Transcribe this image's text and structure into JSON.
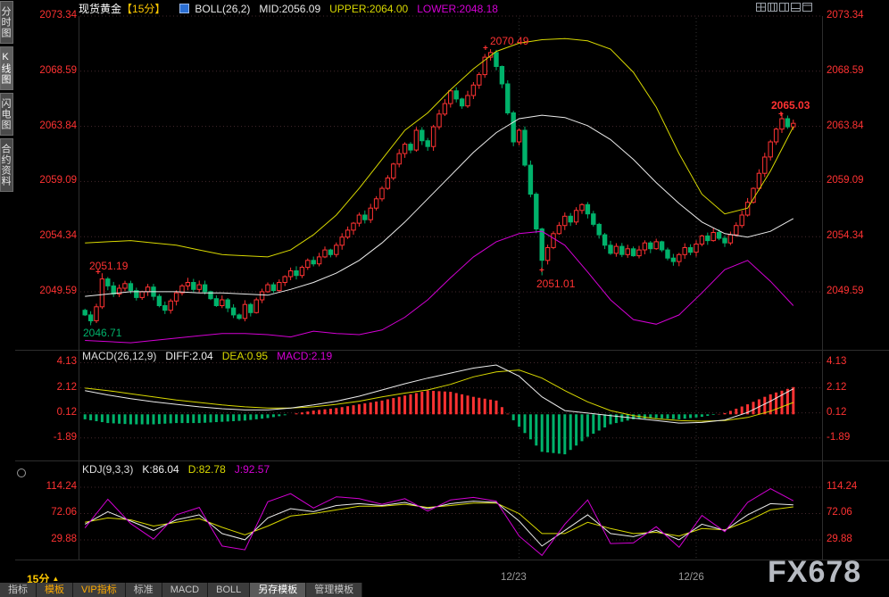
{
  "window": {
    "symbol": "现货黄金",
    "period": "【15分】"
  },
  "header": {
    "boll": "BOLL(26,2)",
    "mid": "MID:2056.09",
    "upper": "UPPER:2064.00",
    "lower": "LOWER:2048.18"
  },
  "sidebar": {
    "items": [
      "分时图",
      "K线图",
      "闪电图",
      "合约资料"
    ]
  },
  "main_chart": {
    "ticks": [
      "2073.34",
      "2068.59",
      "2063.84",
      "2059.09",
      "2054.34",
      "2049.59"
    ],
    "annotations": [
      {
        "text": "2051.19"
      },
      {
        "text": "2046.71"
      },
      {
        "text": "2070.49"
      },
      {
        "text": "2051.01"
      },
      {
        "text": "2065.03"
      }
    ]
  },
  "macd_panel": {
    "title": "MACD(26,12,9)",
    "diff": "DIFF:2.04",
    "dea": "DEA:0.95",
    "macd": "MACD:2.19",
    "ticks": [
      "4.13",
      "2.12",
      "0.12",
      "-1.89"
    ]
  },
  "kdj_panel": {
    "title": "KDJ(9,3,3)",
    "k": "K:86.04",
    "d": "D:82.78",
    "j": "J:92.57",
    "ticks": [
      "114.24",
      "72.06",
      "29.88"
    ]
  },
  "bottom_axis": {
    "period": "15分",
    "period_arrow": "▲",
    "dates": [
      "12/23",
      "12/26"
    ],
    "watermark": "FX678"
  },
  "toolbar": {
    "tabs": [
      "指标",
      "模板",
      "VIP指标",
      "标准",
      "MACD",
      "BOLL",
      "另存模板",
      "管理模板"
    ]
  },
  "chart_data": {
    "type": "candlestick",
    "title": "现货黄金 15分 K线 with BOLL(26,2), MACD(26,12,9), KDJ(9,3,3)",
    "colors": {
      "up": "#ff3232",
      "down": "#00b26b",
      "boll_upper": "#d8d800",
      "boll_mid": "#ececec",
      "boll_lower": "#d400d4",
      "diff": "#ececec",
      "dea": "#d8d800",
      "k": "#ececec",
      "d": "#d8d800",
      "j": "#d400d4",
      "hist_pos": "#ff3232",
      "hist_neg": "#00b26b",
      "grid": "#45292d",
      "dategrid": "#343434",
      "frame": "#2d2d2d"
    },
    "x_dates": [
      {
        "label": "12/23",
        "index": 76
      },
      {
        "label": "12/26",
        "index": 107
      }
    ],
    "main": {
      "ylim": [
        2044.75,
        2073.34
      ],
      "ticks": [
        2073.34,
        2068.59,
        2063.84,
        2059.09,
        2054.34,
        2049.59
      ],
      "first_open": 2048.0,
      "closes": [
        2047.6,
        2047.1,
        2048.3,
        2050.7,
        2050.1,
        2049.4,
        2049.9,
        2050.3,
        2049.7,
        2049.1,
        2049.6,
        2050.0,
        2049.2,
        2048.4,
        2048.0,
        2048.8,
        2049.5,
        2050.1,
        2050.4,
        2049.8,
        2050.2,
        2049.6,
        2049.0,
        2048.4,
        2048.9,
        2048.2,
        2047.6,
        2047.3,
        2048.5,
        2047.8,
        2048.9,
        2049.6,
        2050.2,
        2049.7,
        2050.4,
        2050.9,
        2051.4,
        2051.0,
        2051.7,
        2052.3,
        2052.0,
        2052.6,
        2053.2,
        2052.8,
        2053.6,
        2054.3,
        2054.9,
        2055.5,
        2056.2,
        2055.8,
        2056.8,
        2057.6,
        2058.5,
        2059.4,
        2060.6,
        2061.5,
        2062.3,
        2061.8,
        2063.5,
        2062.6,
        2062.1,
        2063.8,
        2064.9,
        2065.8,
        2066.9,
        2066.2,
        2065.6,
        2066.5,
        2067.4,
        2068.3,
        2069.8,
        2070.2,
        2069.0,
        2067.5,
        2065.0,
        2062.5,
        2063.5,
        2060.5,
        2058.0,
        2055.0,
        2052.3,
        2053.4,
        2054.6,
        2055.3,
        2056.1,
        2055.6,
        2056.6,
        2057.1,
        2056.3,
        2055.4,
        2054.5,
        2053.6,
        2052.9,
        2053.5,
        2052.8,
        2053.3,
        2052.7,
        2053.2,
        2053.8,
        2053.3,
        2053.9,
        2053.2,
        2052.5,
        2052.2,
        2052.8,
        2053.4,
        2053.0,
        2053.7,
        2054.4,
        2054.0,
        2054.7,
        2054.2,
        2053.8,
        2054.5,
        2055.3,
        2056.2,
        2057.3,
        2058.5,
        2059.8,
        2061.2,
        2062.5,
        2063.6,
        2064.5,
        2063.8,
        2064.1
      ],
      "wick_overrides": {
        "1": {
          "low": 2046.71
        },
        "3": {
          "high": 2051.19
        },
        "71": {
          "high": 2070.49
        },
        "80": {
          "low": 2051.01
        },
        "122": {
          "high": 2065.03
        }
      },
      "marks": [
        {
          "price": 2051.19,
          "index": 3,
          "type": "high"
        },
        {
          "price": 2046.71,
          "index": 1,
          "type": "low"
        },
        {
          "price": 2070.49,
          "index": 71,
          "type": "high"
        },
        {
          "price": 2051.01,
          "index": 80,
          "type": "low"
        },
        {
          "price": 2065.03,
          "index": 122,
          "type": "high"
        }
      ],
      "boll": {
        "sample_idx": [
          0,
          4,
          8,
          12,
          16,
          20,
          24,
          28,
          32,
          36,
          40,
          44,
          48,
          52,
          56,
          60,
          64,
          68,
          72,
          76,
          80,
          84,
          88,
          92,
          96,
          100,
          104,
          108,
          112,
          116,
          120,
          124
        ],
        "upper": [
          2053.8,
          2053.9,
          2054.0,
          2053.8,
          2053.6,
          2053.2,
          2052.8,
          2052.7,
          2052.6,
          2053.2,
          2054.5,
          2056.2,
          2058.5,
          2061.0,
          2063.5,
          2065.0,
          2067.0,
          2068.8,
          2070.3,
          2071.0,
          2071.3,
          2071.4,
          2071.2,
          2070.5,
          2068.5,
          2065.5,
          2061.5,
          2058.0,
          2056.3,
          2056.8,
          2060.0,
          2063.8
        ],
        "mid": [
          2049.2,
          2049.4,
          2049.6,
          2049.6,
          2049.6,
          2049.5,
          2049.5,
          2049.4,
          2049.3,
          2049.8,
          2050.4,
          2051.2,
          2052.3,
          2053.8,
          2055.6,
          2057.6,
          2059.6,
          2061.6,
          2063.3,
          2064.5,
          2064.8,
          2064.6,
          2063.9,
          2062.7,
          2061.0,
          2059.0,
          2057.2,
          2055.6,
          2054.6,
          2054.3,
          2054.8,
          2055.9
        ],
        "lower": [
          2045.4,
          2045.3,
          2045.2,
          2045.4,
          2045.6,
          2045.8,
          2046.0,
          2046.0,
          2045.9,
          2045.7,
          2046.2,
          2046.0,
          2045.9,
          2046.3,
          2047.4,
          2048.9,
          2050.8,
          2052.6,
          2053.9,
          2054.6,
          2054.8,
          2053.6,
          2051.3,
          2048.9,
          2047.2,
          2046.8,
          2047.6,
          2049.5,
          2051.5,
          2052.3,
          2050.5,
          2048.4
        ]
      }
    },
    "macd": {
      "ylim": [
        -3.55,
        4.59
      ],
      "ticks": [
        4.13,
        2.12,
        0.12,
        -1.89
      ],
      "sample_idx": [
        0,
        4,
        8,
        12,
        16,
        20,
        24,
        28,
        32,
        36,
        40,
        44,
        48,
        52,
        56,
        60,
        64,
        68,
        72,
        76,
        80,
        84,
        88,
        92,
        96,
        100,
        104,
        108,
        112,
        116,
        120,
        124
      ],
      "diff": [
        1.9,
        1.55,
        1.25,
        1.0,
        0.8,
        0.6,
        0.45,
        0.35,
        0.35,
        0.5,
        0.75,
        1.05,
        1.45,
        1.95,
        2.45,
        2.9,
        3.3,
        3.7,
        3.95,
        3.05,
        1.4,
        0.3,
        0.1,
        -0.1,
        -0.3,
        -0.5,
        -0.7,
        -0.65,
        -0.45,
        0.15,
        1.05,
        2.04
      ],
      "dea": [
        2.1,
        1.9,
        1.65,
        1.4,
        1.15,
        0.95,
        0.75,
        0.6,
        0.5,
        0.5,
        0.6,
        0.8,
        1.05,
        1.4,
        1.7,
        1.95,
        2.4,
        3.0,
        3.4,
        3.55,
        2.9,
        1.9,
        1.0,
        0.3,
        -0.1,
        -0.35,
        -0.5,
        -0.55,
        -0.5,
        -0.25,
        0.25,
        0.95
      ],
      "hist_formula": "2*(diff-dea)"
    },
    "kdj": {
      "ylim": [
        2.7,
        125.7
      ],
      "ticks": [
        114.24,
        72.06,
        29.88
      ],
      "sample_idx": [
        0,
        4,
        8,
        12,
        16,
        20,
        24,
        28,
        32,
        36,
        40,
        44,
        48,
        52,
        56,
        60,
        64,
        68,
        72,
        76,
        80,
        84,
        88,
        92,
        96,
        100,
        104,
        108,
        112,
        116,
        120,
        124
      ],
      "k": [
        55,
        75,
        60,
        45,
        62,
        70,
        40,
        30,
        65,
        80,
        75,
        85,
        88,
        85,
        90,
        80,
        88,
        92,
        90,
        60,
        20,
        45,
        70,
        40,
        35,
        45,
        30,
        55,
        45,
        70,
        88,
        86.04
      ],
      "d": [
        58,
        65,
        62,
        52,
        58,
        64,
        50,
        38,
        52,
        68,
        72,
        78,
        84,
        84,
        87,
        82,
        85,
        89,
        89,
        72,
        40,
        40,
        58,
        48,
        40,
        42,
        36,
        48,
        46,
        60,
        78,
        82.78
      ],
      "j": [
        49,
        95,
        56,
        31,
        70,
        82,
        20,
        14,
        91,
        104,
        81,
        99,
        96,
        87,
        96,
        76,
        94,
        98,
        92,
        36,
        5,
        55,
        94,
        24,
        25,
        51,
        18,
        69,
        43,
        90,
        112,
        92.57
      ]
    }
  }
}
